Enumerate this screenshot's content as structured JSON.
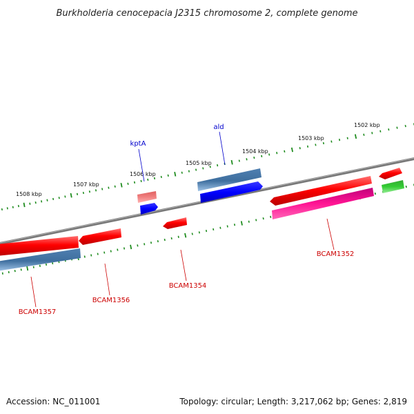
{
  "title": "Burkholderia cenocepacia J2315 chromosome 2, complete genome",
  "footer": {
    "accession": "Accession: NC_011001",
    "topology": "Topology: circular; Length: 3,217,062 bp; Genes: 2,819"
  },
  "colors": {
    "backbone": "#7a7a7a",
    "tick": "#1f8c1f",
    "label_red": "#cc0000",
    "label_blue": "#0000cc",
    "leader_red": "#cc0000",
    "leader_blue": "#0000cc",
    "gene_red": "#ff0000",
    "gene_steelblue": "#4a7fb5",
    "gene_blue": "#0000ff",
    "gene_magenta": "#ff1493",
    "gene_green": "#33cc33",
    "gene_salmon": "#f08080"
  },
  "kbp_ticks": [
    {
      "label": "1502 kbp"
    },
    {
      "label": "1503 kbp"
    },
    {
      "label": "1504 kbp"
    },
    {
      "label": "1505 kbp"
    },
    {
      "label": "1506 kbp"
    },
    {
      "label": "1507 kbp"
    },
    {
      "label": "1508 kbp"
    }
  ],
  "gene_labels": [
    {
      "name": "kptA",
      "strand": "forward",
      "color": "blue"
    },
    {
      "name": "ald",
      "strand": "forward",
      "color": "blue"
    },
    {
      "name": "BCAM1352",
      "strand": "reverse",
      "color": "red"
    },
    {
      "name": "BCAM1354",
      "strand": "reverse",
      "color": "red"
    },
    {
      "name": "BCAM1356",
      "strand": "reverse",
      "color": "red"
    },
    {
      "name": "BCAM1357",
      "strand": "reverse",
      "color": "red"
    }
  ]
}
